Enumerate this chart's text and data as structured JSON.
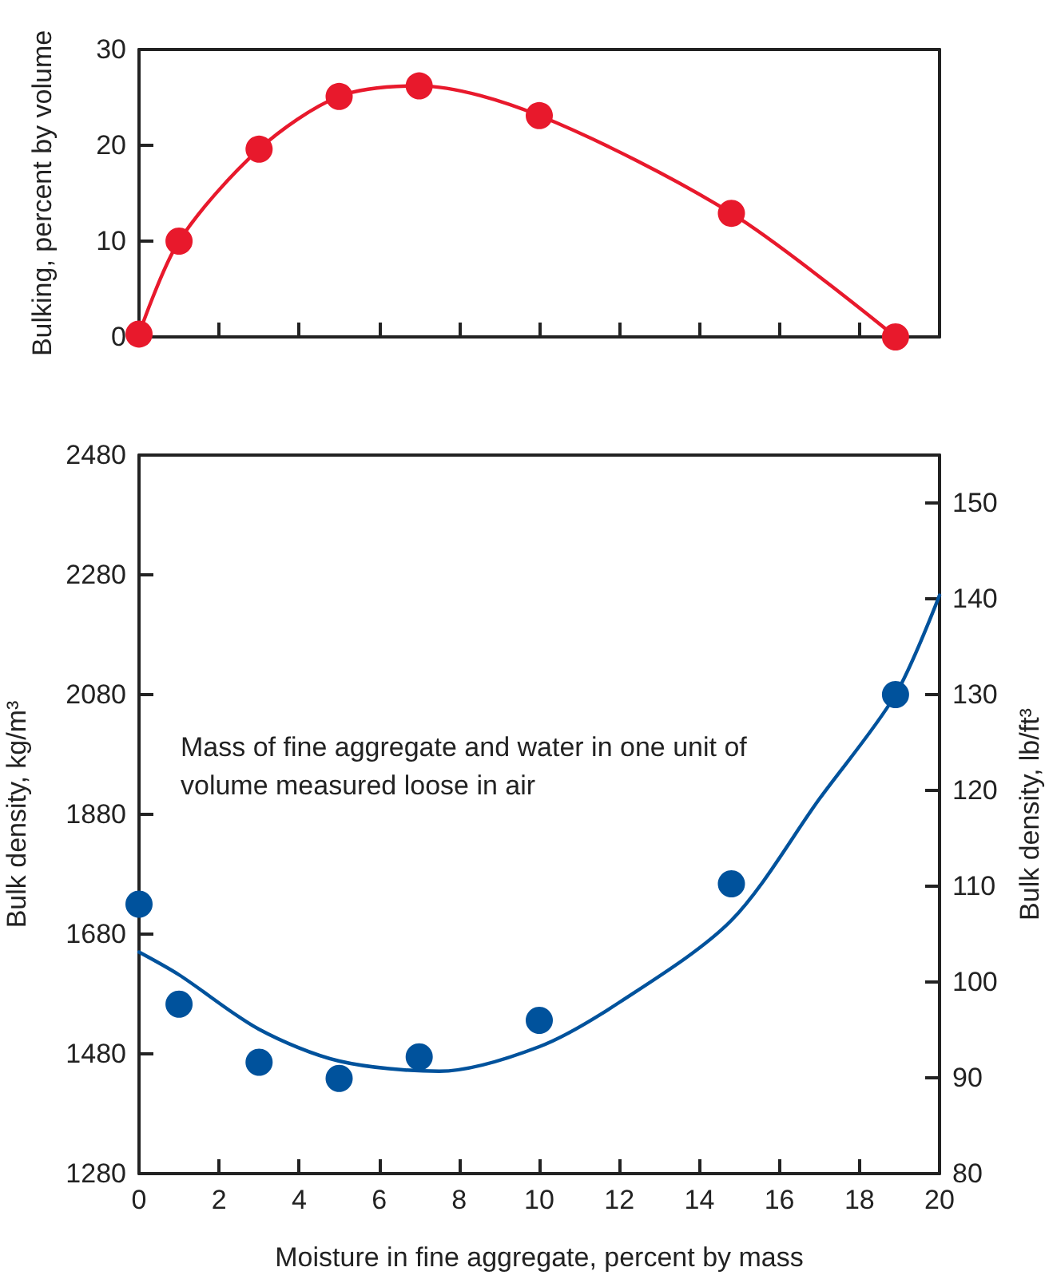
{
  "chart_data": [
    {
      "type": "line",
      "ylabel": "Bulking, percent by volume",
      "x": [
        0,
        1,
        3,
        5,
        7,
        10,
        14.8,
        18.9
      ],
      "series": [
        {
          "color": "#e8192c",
          "values": [
            0.3,
            10,
            19.6,
            25.1,
            26.2,
            23.1,
            12.9,
            0
          ]
        }
      ],
      "xlim": [
        0,
        20
      ],
      "xticks": [
        {
          "value": 0,
          "label": null
        },
        {
          "value": 2,
          "label": null
        },
        {
          "value": 4,
          "label": null
        },
        {
          "value": 6,
          "label": null
        },
        {
          "value": 8,
          "label": null
        },
        {
          "value": 10,
          "label": null
        },
        {
          "value": 12,
          "label": null
        },
        {
          "value": 14,
          "label": null
        },
        {
          "value": 16,
          "label": null
        },
        {
          "value": 18,
          "label": null
        },
        {
          "value": 20,
          "label": null
        }
      ],
      "ylim": [
        0,
        30
      ],
      "yticks": [
        0,
        10,
        20,
        30
      ],
      "tick_labels": "y",
      "grid": false,
      "marker": "circle",
      "line_style": "solid"
    },
    {
      "type": "scatter",
      "xlabel": "Moisture in fine aggregate, percent by mass",
      "ylabel": "Bulk density, kg/m³",
      "y2label": "Bulk density, lb/ft³",
      "annotations": [
        "Mass of fine aggregate and water in one unit of volume measured loose in air"
      ],
      "x": [
        0,
        1,
        3,
        5,
        7,
        10,
        14.8,
        18.9
      ],
      "series": [
        {
          "color": "#00529c",
          "values": [
            1730,
            1563,
            1466,
            1439,
            1475,
            1536,
            1764,
            2080
          ]
        },
        {
          "type": "line",
          "color": "#00529c",
          "marker": "none",
          "x": [
            0,
            1,
            3,
            5,
            7.5,
            10,
            12,
            14.8,
            17,
            18.9,
            20
          ],
          "values": [
            1650,
            1612,
            1521,
            1468,
            1451,
            1492,
            1566,
            1703,
            1906,
            2080,
            2246
          ]
        }
      ],
      "xlim": [
        0,
        20
      ],
      "xticks": [
        0,
        2,
        4,
        6,
        8,
        10,
        12,
        14,
        16,
        18,
        20
      ],
      "ylim": [
        1280,
        2480
      ],
      "yticks": [
        1280,
        1480,
        1680,
        1880,
        2080,
        2280,
        2480
      ],
      "y2lim": [
        80,
        155
      ],
      "y2ticks": [
        80,
        90,
        100,
        110,
        120,
        130,
        140,
        150
      ],
      "grid": false,
      "marker": "circle",
      "line_style": "solid"
    }
  ]
}
